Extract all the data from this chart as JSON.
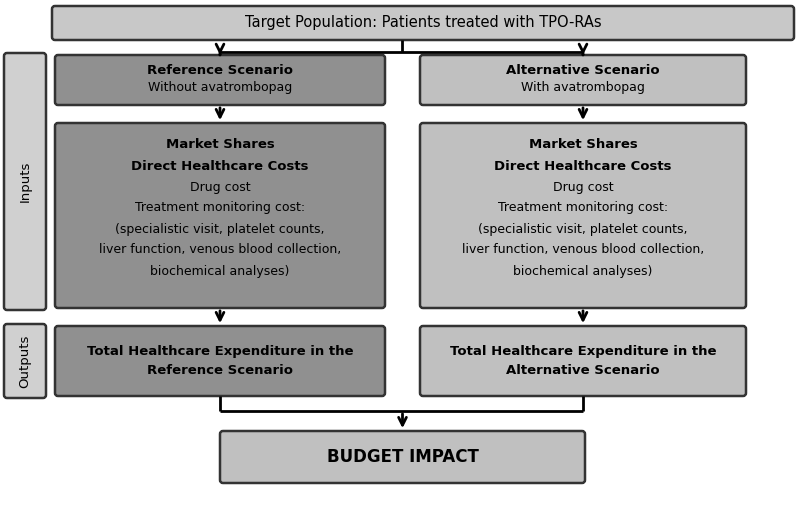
{
  "title": "Target Population: Patients treated with TPO-RAs",
  "ref_scenario_title": "Reference Scenario",
  "ref_scenario_sub": "Without avatrombopag",
  "alt_scenario_title": "Alternative Scenario",
  "alt_scenario_sub": "With avatrombopag",
  "market_shares_lines": [
    [
      "Market Shares",
      true
    ],
    [
      "Direct Healthcare Costs",
      true
    ],
    [
      "Drug cost",
      false
    ],
    [
      "Treatment monitoring cost:",
      false
    ],
    [
      "(specialistic visit, platelet counts,",
      false
    ],
    [
      "liver function, venous blood collection,",
      false
    ],
    [
      "biochemical analyses)",
      false
    ]
  ],
  "output_ref_line1": "Total Healthcare Expenditure in the",
  "output_ref_line2": "Reference Scenario",
  "output_alt_line1": "Total Healthcare Expenditure in the",
  "output_alt_line2": "Alternative Scenario",
  "budget_impact": "BUDGET IMPACT",
  "label_inputs": "Inputs",
  "label_outputs": "Outputs",
  "color_top_box": "#c8c8c8",
  "color_dark_box": "#909090",
  "color_light_box": "#c0c0c0",
  "color_side_box": "#d0d0d0",
  "color_budget_box": "#c0c0c0",
  "background_color": "#ffffff"
}
